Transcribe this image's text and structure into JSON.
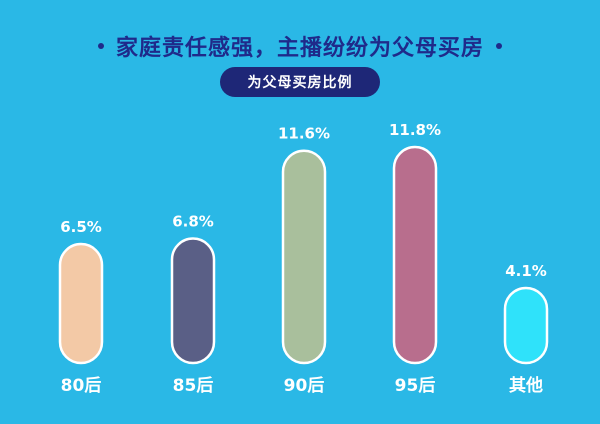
{
  "header": {
    "title": "家庭责任感强，主播纷纷为父母买房",
    "subtitle": "为父母买房比例"
  },
  "chart_data": {
    "type": "bar",
    "title": "家庭责任感强，主播纷纷为父母买房",
    "subtitle": "为父母买房比例",
    "categories": [
      "80后",
      "85后",
      "90后",
      "95后",
      "其他"
    ],
    "values": [
      6.5,
      6.8,
      11.6,
      11.8,
      4.1
    ],
    "value_labels": [
      "6.5%",
      "6.8%",
      "11.6%",
      "11.8%",
      "4.1%"
    ],
    "colors": [
      "#f3c9a6",
      "#5a5f86",
      "#a9bf9c",
      "#b86e8d",
      "#2fe2fa"
    ],
    "xlabel": "",
    "ylabel": "",
    "unit": "%",
    "grid": false,
    "legend": "none"
  }
}
